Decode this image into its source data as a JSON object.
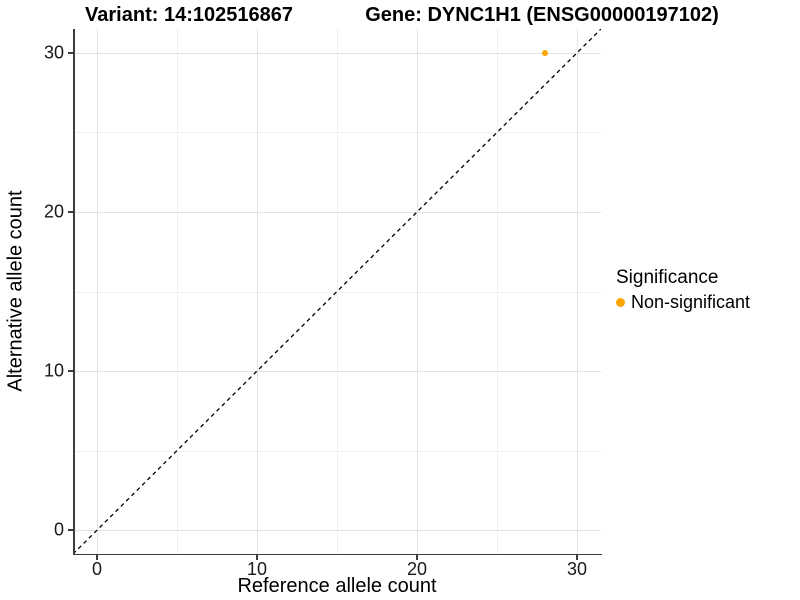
{
  "chart_data": {
    "type": "scatter",
    "title_left": "Variant: 14:102516867",
    "title_right": "Gene: DYNC1H1 (ENSG00000197102)",
    "xlabel": "Reference allele count",
    "ylabel": "Alternative allele count",
    "xlim": [
      -1.5,
      31.5
    ],
    "ylim": [
      -1.5,
      31.5
    ],
    "x_ticks": [
      0,
      10,
      20,
      30
    ],
    "y_ticks": [
      0,
      10,
      20,
      30
    ],
    "grid": {
      "major": true,
      "minor": true,
      "major_color": "#e2e2e2",
      "minor_color": "#f0f0f0"
    },
    "axis_color": "#3d3d3d",
    "reference_line": {
      "kind": "identity y = x",
      "style": "dashed",
      "color": "#000000"
    },
    "legend_title": "Significance",
    "legend_position": "right",
    "series": [
      {
        "name": "Non-significant",
        "color": "#FFA500",
        "points": [
          {
            "x": 28,
            "y": 30
          }
        ]
      }
    ]
  }
}
